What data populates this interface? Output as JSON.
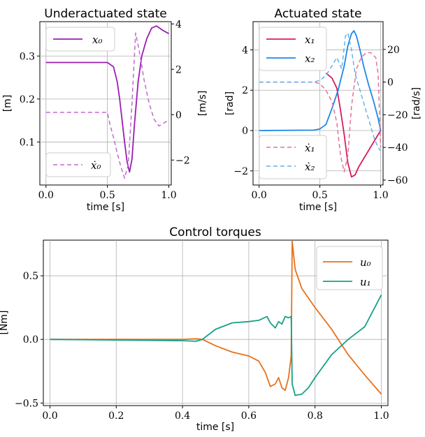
{
  "chart_data": [
    {
      "type": "line",
      "title": "Underactuated state",
      "xlabel": "time [s]",
      "ylabel_left": "[m]",
      "ylabel_right": "[m/s]",
      "xlim": [
        -0.05,
        1.02
      ],
      "ylim_left": [
        0.0,
        0.38
      ],
      "ylim_right": [
        -3.1,
        4.1
      ],
      "xticks": [
        0.0,
        0.5,
        1.0
      ],
      "xtick_labels": [
        "0.0",
        "0.5",
        "1.0"
      ],
      "yticks_left": [
        0.1,
        0.2,
        0.3
      ],
      "ytick_labels_left": [
        "0.1",
        "0.2",
        "0.3"
      ],
      "yticks_right": [
        -2,
        0,
        2,
        4
      ],
      "ytick_labels_right": [
        "−2",
        "0",
        "2",
        "4"
      ],
      "grid": true,
      "series": [
        {
          "name": "x₀",
          "axis": "left",
          "style": "solid",
          "color": "#9c1cb3",
          "x": [
            0.0,
            0.5,
            0.55,
            0.58,
            0.6,
            0.62,
            0.64,
            0.66,
            0.68,
            0.7,
            0.72,
            0.75,
            0.78,
            0.82,
            0.86,
            0.9,
            0.95,
            1.0
          ],
          "y": [
            0.285,
            0.285,
            0.275,
            0.24,
            0.2,
            0.15,
            0.1,
            0.055,
            0.03,
            0.06,
            0.14,
            0.24,
            0.3,
            0.34,
            0.365,
            0.37,
            0.36,
            0.352
          ]
        },
        {
          "name": "ẋ₀",
          "axis": "right",
          "style": "dashed",
          "color": "#c06ad0",
          "x": [
            0.0,
            0.5,
            0.52,
            0.55,
            0.58,
            0.61,
            0.64,
            0.67,
            0.7,
            0.73,
            0.76,
            0.8,
            0.84,
            0.88,
            0.92,
            0.95,
            0.98,
            1.0
          ],
          "y": [
            0.1,
            0.1,
            -0.4,
            -1.0,
            -1.7,
            -2.3,
            -2.8,
            -2.2,
            0.5,
            3.6,
            2.8,
            1.5,
            0.5,
            -0.2,
            -0.5,
            -0.4,
            -0.3,
            -0.3
          ]
        }
      ],
      "legend_left_position": "top-left",
      "legend_right_position": "bottom-left"
    },
    {
      "type": "line",
      "title": "Actuated state",
      "xlabel": "time [s]",
      "ylabel_left": "[rad]",
      "ylabel_right": "[rad/s]",
      "xlim": [
        -0.05,
        1.02
      ],
      "ylim_left": [
        -2.7,
        5.4
      ],
      "ylim_right": [
        -63,
        37
      ],
      "xticks": [
        0.0,
        0.5,
        1.0
      ],
      "xtick_labels": [
        "0.0",
        "0.5",
        "1.0"
      ],
      "yticks_left": [
        -2,
        0,
        2,
        4
      ],
      "ytick_labels_left": [
        "−2",
        "0",
        "2",
        "4"
      ],
      "yticks_right": [
        -60,
        -40,
        -20,
        0,
        20
      ],
      "ytick_labels_right": [
        "−60",
        "−40",
        "−20",
        "0",
        "20"
      ],
      "grid": true,
      "series": [
        {
          "name": "x₁",
          "axis": "left",
          "style": "solid",
          "color": "#d81b60",
          "x": [
            0.55,
            0.6,
            0.64,
            0.67,
            0.7,
            0.73,
            0.76,
            0.79,
            0.82,
            0.86,
            0.9,
            0.95,
            1.0
          ],
          "y": [
            2.85,
            2.6,
            2.1,
            1.0,
            -0.2,
            -1.6,
            -2.3,
            -2.2,
            -1.8,
            -1.4,
            -1.0,
            -0.5,
            0.0
          ]
        },
        {
          "name": "x₂",
          "axis": "left",
          "style": "solid",
          "color": "#1e88e5",
          "x": [
            0.0,
            0.45,
            0.5,
            0.55,
            0.6,
            0.65,
            0.7,
            0.73,
            0.76,
            0.78,
            0.8,
            0.83,
            0.86,
            0.9,
            0.94,
            0.98,
            1.0
          ],
          "y": [
            0.0,
            0.02,
            0.08,
            0.3,
            1.1,
            2.0,
            3.2,
            4.2,
            4.8,
            4.95,
            4.7,
            4.0,
            3.2,
            2.3,
            1.5,
            0.6,
            0.0
          ]
        },
        {
          "name": "ẋ₁",
          "axis": "right",
          "style": "dashed",
          "color": "#e7709a",
          "x": [
            0.0,
            0.45,
            0.5,
            0.55,
            0.6,
            0.64,
            0.67,
            0.7,
            0.73,
            0.76,
            0.8,
            0.84,
            0.88,
            0.92,
            0.96,
            0.98,
            1.0
          ],
          "y": [
            0.0,
            0.0,
            -1.0,
            -5.0,
            -12.0,
            -25.0,
            -45.0,
            -55.0,
            -45.0,
            -15.0,
            8.0,
            15.0,
            18.0,
            18.0,
            15.0,
            5.0,
            -40.0
          ]
        },
        {
          "name": "ẋ₂",
          "axis": "right",
          "style": "dashed",
          "color": "#64b0ea",
          "x": [
            0.0,
            0.45,
            0.5,
            0.55,
            0.6,
            0.64,
            0.68,
            0.71,
            0.73,
            0.76,
            0.79,
            0.83,
            0.87,
            0.91,
            0.95,
            0.98,
            1.0
          ],
          "y": [
            0.0,
            0.0,
            1.0,
            4.0,
            10.0,
            15.0,
            8.0,
            28.0,
            30.0,
            20.0,
            5.0,
            -5.0,
            -15.0,
            -25.0,
            -35.0,
            -40.0,
            -42.0
          ]
        }
      ],
      "legend_left_position": "top-left",
      "legend_right_position": "bottom-left"
    },
    {
      "type": "line",
      "title": "Control torques",
      "xlabel": "time [s]",
      "ylabel": "[Nm]",
      "xlim": [
        -0.02,
        1.02
      ],
      "ylim": [
        -0.52,
        0.78
      ],
      "xticks": [
        0.0,
        0.2,
        0.4,
        0.6,
        0.8,
        1.0
      ],
      "xtick_labels": [
        "0.0",
        "0.2",
        "0.4",
        "0.6",
        "0.8",
        "1.0"
      ],
      "yticks": [
        -0.5,
        0.0,
        0.5
      ],
      "ytick_labels": [
        "−0.5",
        "0.0",
        "0.5"
      ],
      "grid": true,
      "legend_position": "top-right",
      "series": [
        {
          "name": "u₀",
          "style": "solid",
          "color": "#e8711a",
          "x": [
            0.0,
            0.2,
            0.4,
            0.44,
            0.46,
            0.5,
            0.55,
            0.6,
            0.63,
            0.65,
            0.665,
            0.68,
            0.69,
            0.7,
            0.71,
            0.72,
            0.728,
            0.731,
            0.74,
            0.76,
            0.8,
            0.85,
            0.9,
            0.95,
            1.0
          ],
          "y": [
            0.0,
            0.0,
            0.0,
            0.005,
            0.0,
            -0.05,
            -0.1,
            -0.13,
            -0.17,
            -0.26,
            -0.37,
            -0.35,
            -0.3,
            -0.38,
            -0.4,
            -0.3,
            -0.13,
            0.77,
            0.55,
            0.4,
            0.25,
            0.08,
            -0.12,
            -0.28,
            -0.43
          ]
        },
        {
          "name": "u₁",
          "style": "solid",
          "color": "#17a085",
          "x": [
            0.0,
            0.2,
            0.4,
            0.44,
            0.46,
            0.5,
            0.55,
            0.6,
            0.63,
            0.655,
            0.665,
            0.68,
            0.69,
            0.7,
            0.71,
            0.72,
            0.728,
            0.731,
            0.74,
            0.76,
            0.78,
            0.8,
            0.85,
            0.9,
            0.95,
            1.0
          ],
          "y": [
            0.0,
            -0.005,
            -0.01,
            -0.015,
            0.0,
            0.08,
            0.13,
            0.14,
            0.15,
            0.18,
            0.13,
            0.09,
            0.14,
            0.12,
            0.18,
            0.17,
            0.18,
            -0.35,
            -0.44,
            -0.43,
            -0.38,
            -0.3,
            -0.12,
            0.0,
            0.1,
            0.35
          ]
        }
      ]
    }
  ]
}
